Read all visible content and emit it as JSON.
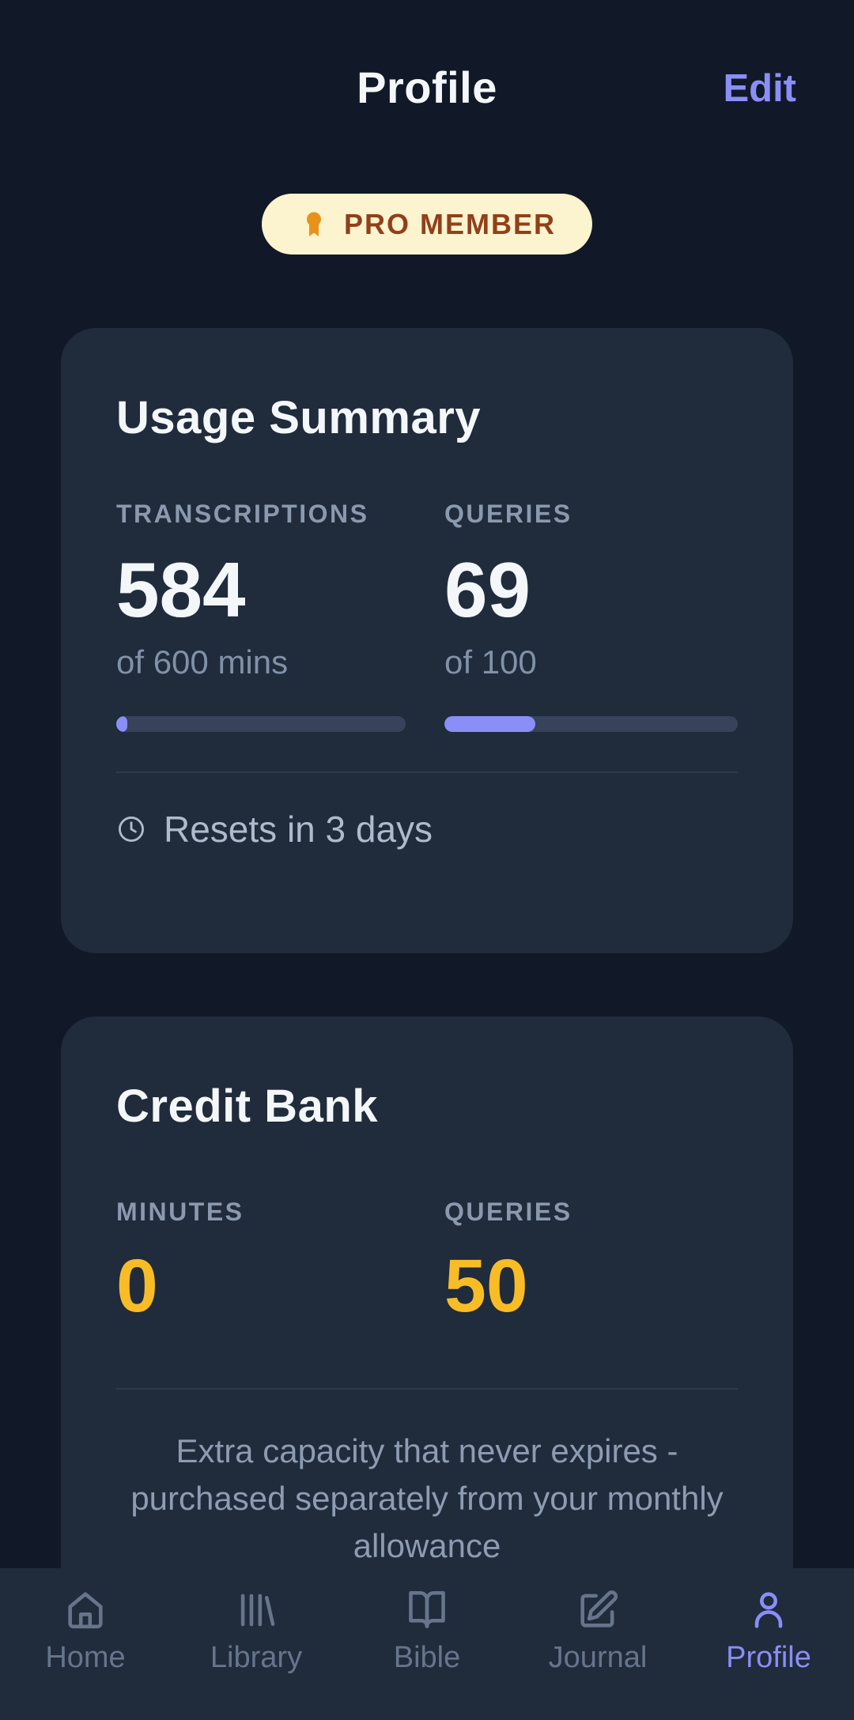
{
  "header": {
    "title": "Profile",
    "edit_label": "Edit"
  },
  "badge": {
    "label": "PRO MEMBER",
    "icon": "medal-icon"
  },
  "usage_card": {
    "title": "Usage Summary",
    "stats": [
      {
        "label": "TRANSCRIPTIONS",
        "value": "584",
        "sub": "of 600 mins",
        "fill_pct": 2.7
      },
      {
        "label": "QUERIES",
        "value": "69",
        "sub": "of 100",
        "fill_pct": 31
      }
    ],
    "reset_note": "Resets in 3 days",
    "reset_icon": "clock-icon"
  },
  "credit_card": {
    "title": "Credit Bank",
    "stats": [
      {
        "label": "MINUTES",
        "value": "0"
      },
      {
        "label": "QUERIES",
        "value": "50"
      }
    ],
    "description": "Extra capacity that never expires - purchased separately from your monthly allowance"
  },
  "nav": {
    "items": [
      {
        "label": "Home",
        "icon": "home-icon",
        "active": false
      },
      {
        "label": "Library",
        "icon": "library-icon",
        "active": false
      },
      {
        "label": "Bible",
        "icon": "bible-icon",
        "active": false
      },
      {
        "label": "Journal",
        "icon": "journal-icon",
        "active": false
      },
      {
        "label": "Profile",
        "icon": "profile-icon",
        "active": true
      }
    ]
  },
  "colors": {
    "page-bg": "#111827",
    "card-bg": "#202b3b",
    "text-main": "#f4f7fa",
    "text-muted": "#8b99ae",
    "text-dim": "#8091a8",
    "text-dim2": "#8d9cb2",
    "text-soft": "#aebbcc",
    "accent": "#8a8ef6",
    "track": "#36435a",
    "divider": "#2e3a4d",
    "gold": "#f8bd26",
    "badge-bg": "#fcf4cf",
    "badge-icon": "#e8921c",
    "badge-text": "#91401a",
    "nav-inactive": "#66758c"
  }
}
